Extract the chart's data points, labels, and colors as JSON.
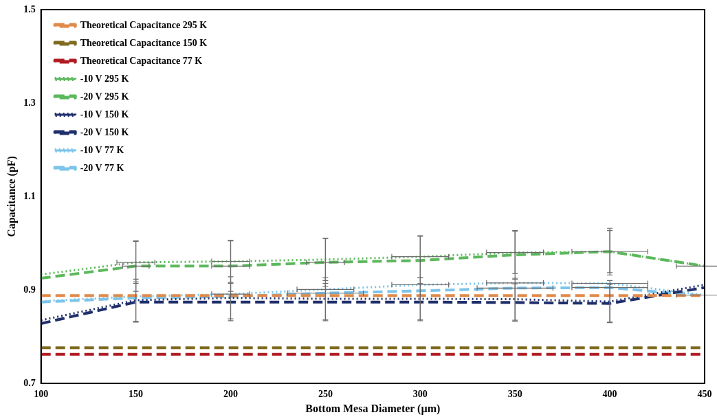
{
  "chart_data": {
    "type": "line",
    "xlabel": "Bottom Mesa Diameter (µm)",
    "ylabel": "Capacitance (pF)",
    "x": [
      100,
      150,
      200,
      250,
      300,
      350,
      400,
      450
    ],
    "xlim": [
      100,
      450
    ],
    "xticks": [
      100,
      150,
      200,
      250,
      300,
      350,
      400,
      450
    ],
    "ylim": [
      0.7,
      1.5
    ],
    "yticks": [
      0.7,
      0.9,
      1.1,
      1.3,
      1.5
    ],
    "grid": false,
    "legend": "top left",
    "marker": "none",
    "series": [
      {
        "name": "Theoretical Capacitance 295 K",
        "color": "#e08a4a",
        "line_style": "dashed",
        "values": [
          0.888,
          0.888,
          0.888,
          0.888,
          0.888,
          0.888,
          0.888,
          0.888
        ]
      },
      {
        "name": "Theoretical Capacitance 150 K",
        "color": "#7f6a1f",
        "line_style": "dashed",
        "values": [
          0.776,
          0.776,
          0.776,
          0.776,
          0.776,
          0.776,
          0.776,
          0.776
        ]
      },
      {
        "name": "Theoretical Capacitance 77 K",
        "color": "#b01c22",
        "line_style": "dashed",
        "values": [
          0.762,
          0.762,
          0.762,
          0.762,
          0.762,
          0.762,
          0.762,
          0.762
        ]
      },
      {
        "name": "-10 V 295 K",
        "color": "#5cb85c",
        "line_style": "dotted",
        "values": [
          0.933,
          0.959,
          0.961,
          0.965,
          0.971,
          0.98,
          0.982,
          0.951
        ],
        "errors": [
          null,
          0.045,
          0.045,
          0.045,
          0.045,
          0.045,
          0.045,
          null
        ],
        "xerrors": [
          null,
          10,
          10,
          null,
          15,
          15,
          20,
          null
        ]
      },
      {
        "name": "-20 V 295 K",
        "color": "#5cb85c",
        "line_style": "dashed",
        "values": [
          0.925,
          0.951,
          0.951,
          0.959,
          0.963,
          0.975,
          0.982,
          0.951
        ],
        "errors": [
          null,
          0.054,
          0.054,
          0.052,
          0.052,
          0.052,
          0.05,
          null
        ],
        "xerrors": [
          null,
          7,
          10,
          10,
          null,
          null,
          null,
          15
        ]
      },
      {
        "name": "-10 V 150 K",
        "color": "#1f2f6b",
        "line_style": "dotted",
        "values": [
          0.835,
          0.878,
          0.883,
          0.881,
          0.881,
          0.88,
          0.875,
          0.911
        ],
        "errors": [
          null,
          0.045,
          0.045,
          0.045,
          0.045,
          0.045,
          0.045,
          null
        ]
      },
      {
        "name": "-20 V 150 K",
        "color": "#1f2f6b",
        "line_style": "dashed",
        "values": [
          0.828,
          0.874,
          0.874,
          0.874,
          0.874,
          0.873,
          0.871,
          0.905
        ],
        "errors": [
          null,
          0.043,
          0.04,
          0.04,
          0.04,
          0.04,
          0.04,
          null
        ]
      },
      {
        "name": "-10 V 77 K",
        "color": "#7cc4ea",
        "line_style": "dotted",
        "values": [
          0.876,
          0.886,
          0.891,
          0.901,
          0.911,
          0.915,
          0.914,
          0.889
        ],
        "xerrors": [
          null,
          null,
          10,
          15,
          15,
          15,
          20,
          15
        ]
      },
      {
        "name": "-20 V 77 K",
        "color": "#7cc4ea",
        "line_style": "dashed",
        "values": [
          0.874,
          0.883,
          0.886,
          0.893,
          0.898,
          0.904,
          0.905,
          0.887
        ],
        "xerrors": [
          null,
          null,
          null,
          20,
          null,
          20,
          20,
          null
        ]
      }
    ]
  }
}
